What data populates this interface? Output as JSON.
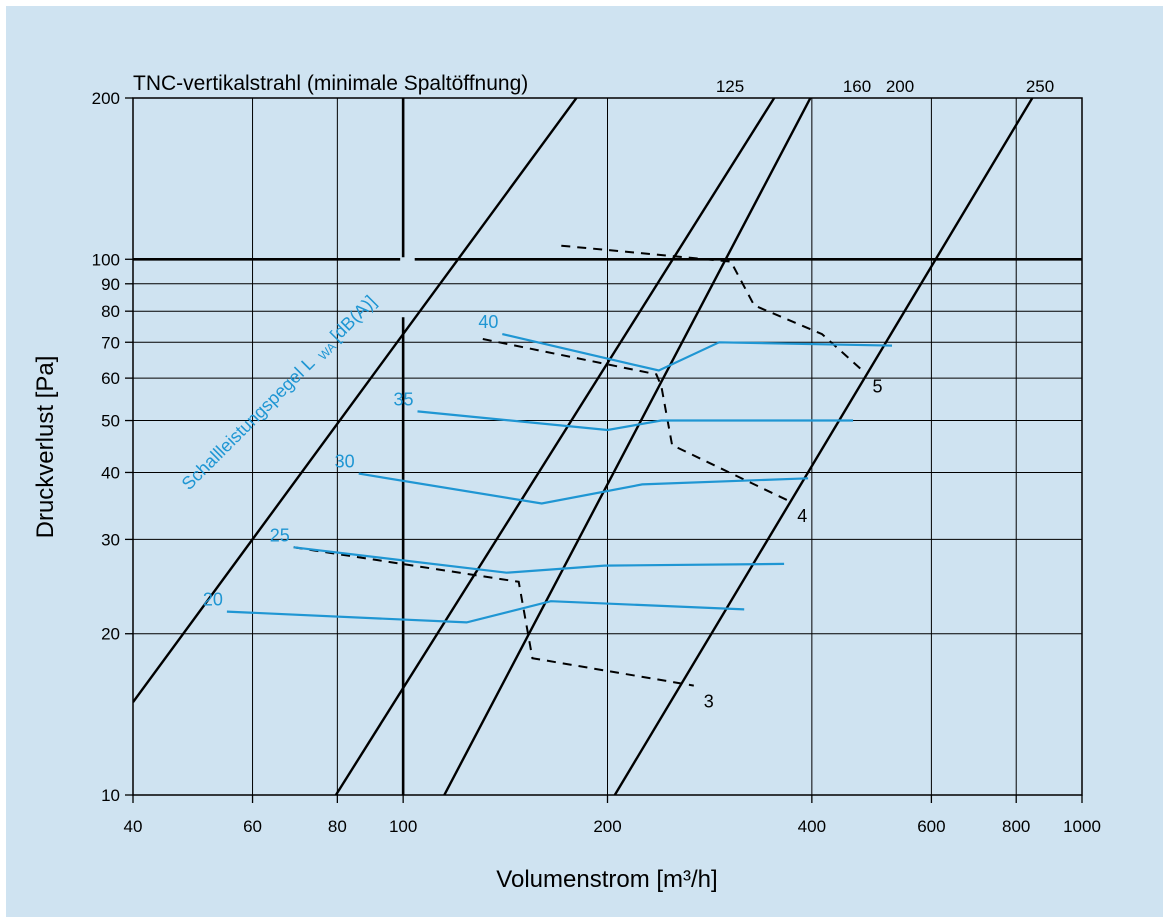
{
  "chart_data": {
    "type": "line",
    "title": "TNC-vertikalstrahl (minimale Spaltöffnung)",
    "xlabel": "Volumenstrom [m³/h]",
    "ylabel": "Druckverlust [Pa]",
    "xscale": "log",
    "yscale": "log",
    "xlim": [
      40,
      1000
    ],
    "ylim": [
      10,
      200
    ],
    "x_ticks": [
      {
        "v": 40,
        "label": "40"
      },
      {
        "v": 60,
        "label": "60"
      },
      {
        "v": 80,
        "label": "80"
      },
      {
        "v": 100,
        "label": "100"
      },
      {
        "v": 200,
        "label": "200"
      },
      {
        "v": 400,
        "label": "400"
      },
      {
        "v": 600,
        "label": "600"
      },
      {
        "v": 800,
        "label": "800"
      },
      {
        "v": 1000,
        "label": "1000"
      }
    ],
    "y_ticks": [
      {
        "v": 10,
        "label": "10"
      },
      {
        "v": 20,
        "label": "20"
      },
      {
        "v": 30,
        "label": "30"
      },
      {
        "v": 40,
        "label": "40"
      },
      {
        "v": 50,
        "label": "50"
      },
      {
        "v": 60,
        "label": "60"
      },
      {
        "v": 70,
        "label": "70"
      },
      {
        "v": 80,
        "label": "80"
      },
      {
        "v": 90,
        "label": "90"
      },
      {
        "v": 100,
        "label": "100"
      },
      {
        "v": 200,
        "label": "200"
      }
    ],
    "grid": true,
    "size_lines": [
      {
        "name": "125",
        "points": [
          [
            40,
            14.9
          ],
          [
            180,
            200
          ]
        ]
      },
      {
        "name": "160",
        "points": [
          [
            79.6,
            10
          ],
          [
            352,
            200
          ]
        ]
      },
      {
        "name": "200",
        "points": [
          [
            115,
            10
          ],
          [
            398,
            200
          ]
        ]
      },
      {
        "name": "250",
        "points": [
          [
            205,
            10
          ],
          [
            845,
            200
          ]
        ]
      }
    ],
    "sound_level_title": "Schallleistungspegel L",
    "sound_level_subscript": "WA",
    "sound_level_unit": "[dB(A)]",
    "sound_level_color": "#1f96d3",
    "sound_levels": [
      {
        "name": "20",
        "points": [
          [
            55,
            22
          ],
          [
            124,
            21
          ],
          [
            165,
            23
          ],
          [
            318,
            22.2
          ]
        ]
      },
      {
        "name": "25",
        "points": [
          [
            69,
            29
          ],
          [
            142,
            26
          ],
          [
            198,
            26.8
          ],
          [
            364,
            27
          ]
        ]
      },
      {
        "name": "30",
        "points": [
          [
            86,
            39.8
          ],
          [
            160,
            35
          ],
          [
            225,
            38
          ],
          [
            395,
            39
          ]
        ]
      },
      {
        "name": "35",
        "points": [
          [
            105,
            52
          ],
          [
            200,
            48
          ],
          [
            240,
            50
          ],
          [
            460,
            50
          ]
        ]
      },
      {
        "name": "40",
        "points": [
          [
            140,
            72.5
          ],
          [
            238,
            62
          ],
          [
            292,
            70
          ],
          [
            525,
            69
          ]
        ]
      }
    ],
    "throw_lines": [
      {
        "name": "3",
        "points": [
          [
            69,
            29
          ],
          [
            148,
            25
          ],
          [
            155,
            18
          ],
          [
            268,
            16
          ]
        ]
      },
      {
        "name": "4",
        "points": [
          [
            131,
            71
          ],
          [
            236,
            61
          ],
          [
            240,
            58
          ],
          [
            249,
            45
          ],
          [
            368,
            35.5
          ]
        ]
      },
      {
        "name": "5",
        "points": [
          [
            171,
            106
          ],
          [
            304,
            99
          ],
          [
            329,
            82
          ],
          [
            414,
            72.5
          ],
          [
            475,
            62
          ]
        ]
      }
    ]
  }
}
